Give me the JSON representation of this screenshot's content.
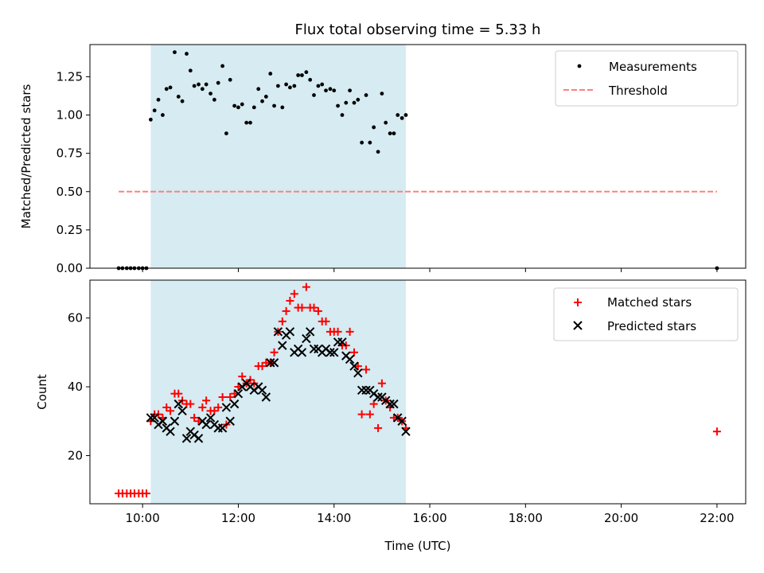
{
  "chart_data": [
    {
      "type": "scatter",
      "title": "Flux total observing time = 5.33 h",
      "xlabel": "",
      "ylabel": "Matched/Predicted stars",
      "xlim": [
        8.9,
        22.6
      ],
      "ylim": [
        0,
        1.46
      ],
      "yticks": [
        0.0,
        0.25,
        0.5,
        0.75,
        1.0,
        1.25
      ],
      "yticklabels": [
        "0.00",
        "0.25",
        "0.50",
        "0.75",
        "1.00",
        "1.25"
      ],
      "shaded_region": {
        "x0": 10.17,
        "x1": 15.5,
        "color": "#add8e6"
      },
      "legend_position": "upper right",
      "series": [
        {
          "name": "Measurements",
          "marker": "dot",
          "color": "#000000",
          "x": [
            9.5,
            9.58,
            9.67,
            9.75,
            9.83,
            9.92,
            10.0,
            10.08,
            10.17,
            10.25,
            10.33,
            10.42,
            10.5,
            10.58,
            10.67,
            10.75,
            10.83,
            10.92,
            11.0,
            11.08,
            11.17,
            11.25,
            11.33,
            11.42,
            11.5,
            11.58,
            11.67,
            11.75,
            11.83,
            11.92,
            12.0,
            12.08,
            12.17,
            12.25,
            12.33,
            12.42,
            12.5,
            12.58,
            12.67,
            12.75,
            12.83,
            12.92,
            13.0,
            13.08,
            13.17,
            13.25,
            13.33,
            13.42,
            13.5,
            13.58,
            13.67,
            13.75,
            13.83,
            13.92,
            14.0,
            14.08,
            14.17,
            14.25,
            14.33,
            14.42,
            14.5,
            14.58,
            14.67,
            14.75,
            14.83,
            14.92,
            15.0,
            15.08,
            15.17,
            15.25,
            15.33,
            15.42,
            15.5,
            22.0
          ],
          "y": [
            0,
            0,
            0,
            0,
            0,
            0,
            0,
            0,
            0.97,
            1.03,
            1.1,
            1.0,
            1.17,
            1.18,
            1.41,
            1.12,
            1.09,
            1.4,
            1.29,
            1.19,
            1.2,
            1.17,
            1.2,
            1.14,
            1.1,
            1.21,
            1.32,
            0.88,
            1.23,
            1.06,
            1.05,
            1.07,
            0.95,
            0.95,
            1.05,
            1.17,
            1.09,
            1.12,
            1.27,
            1.06,
            1.19,
            1.05,
            1.2,
            1.18,
            1.19,
            1.26,
            1.26,
            1.28,
            1.23,
            1.13,
            1.19,
            1.2,
            1.16,
            1.17,
            1.16,
            1.06,
            1.0,
            1.08,
            1.16,
            1.08,
            1.1,
            0.82,
            1.13,
            0.82,
            0.92,
            0.76,
            1.14,
            0.95,
            0.88,
            0.88,
            1.0,
            0.98,
            1.0,
            0
          ]
        },
        {
          "name": "Threshold",
          "marker": "dashed-line",
          "color": "#ff7f7f",
          "x": [
            9.5,
            22.0
          ],
          "y": [
            0.5,
            0.5
          ]
        }
      ]
    },
    {
      "type": "scatter",
      "title": "",
      "xlabel": "Time (UTC)",
      "ylabel": "Count",
      "xlim": [
        8.9,
        22.6
      ],
      "ylim": [
        6,
        71
      ],
      "yticks": [
        20,
        40,
        60
      ],
      "yticklabels": [
        "20",
        "40",
        "60"
      ],
      "xticks": [
        10,
        12,
        14,
        16,
        18,
        20,
        22
      ],
      "xticklabels": [
        "10:00",
        "12:00",
        "14:00",
        "16:00",
        "18:00",
        "20:00",
        "22:00"
      ],
      "shaded_region": {
        "x0": 10.17,
        "x1": 15.5,
        "color": "#add8e6"
      },
      "legend_position": "upper right",
      "series": [
        {
          "name": "Matched stars",
          "marker": "plus",
          "color": "#ff0000",
          "x": [
            9.5,
            9.58,
            9.67,
            9.75,
            9.83,
            9.92,
            10.0,
            10.08,
            10.17,
            10.25,
            10.33,
            10.42,
            10.5,
            10.58,
            10.67,
            10.75,
            10.83,
            10.92,
            11.0,
            11.08,
            11.17,
            11.25,
            11.33,
            11.42,
            11.5,
            11.58,
            11.67,
            11.75,
            11.83,
            11.92,
            12.0,
            12.08,
            12.17,
            12.25,
            12.33,
            12.42,
            12.5,
            12.58,
            12.67,
            12.75,
            12.83,
            12.92,
            13.0,
            13.08,
            13.17,
            13.25,
            13.33,
            13.42,
            13.5,
            13.58,
            13.67,
            13.75,
            13.83,
            13.92,
            14.0,
            14.08,
            14.17,
            14.25,
            14.33,
            14.42,
            14.5,
            14.58,
            14.67,
            14.75,
            14.83,
            14.92,
            15.0,
            15.08,
            15.17,
            15.25,
            15.33,
            15.42,
            15.5,
            22.0
          ],
          "y": [
            9,
            9,
            9,
            9,
            9,
            9,
            9,
            9,
            30,
            32,
            32,
            31,
            34,
            33,
            38,
            38,
            36,
            35,
            35,
            31,
            30,
            34,
            36,
            33,
            33,
            34,
            37,
            29,
            37,
            38,
            40,
            43,
            41,
            42,
            41,
            46,
            46,
            47,
            47,
            50,
            56,
            59,
            62,
            65,
            67,
            63,
            63,
            69,
            63,
            63,
            62,
            59,
            59,
            56,
            56,
            56,
            52,
            52,
            56,
            50,
            46,
            32,
            45,
            32,
            35,
            28,
            41,
            36,
            34,
            31,
            31,
            30,
            28,
            27
          ]
        },
        {
          "name": "Predicted stars",
          "marker": "cross",
          "color": "#000000",
          "x": [
            10.17,
            10.25,
            10.33,
            10.42,
            10.5,
            10.58,
            10.67,
            10.75,
            10.83,
            10.92,
            11.0,
            11.08,
            11.17,
            11.25,
            11.33,
            11.42,
            11.5,
            11.58,
            11.67,
            11.75,
            11.83,
            11.92,
            12.0,
            12.08,
            12.17,
            12.25,
            12.33,
            12.42,
            12.5,
            12.58,
            12.67,
            12.75,
            12.83,
            12.92,
            13.0,
            13.08,
            13.17,
            13.25,
            13.33,
            13.42,
            13.5,
            13.58,
            13.67,
            13.75,
            13.83,
            13.92,
            14.0,
            14.08,
            14.17,
            14.25,
            14.33,
            14.42,
            14.5,
            14.58,
            14.67,
            14.75,
            14.83,
            14.92,
            15.0,
            15.08,
            15.17,
            15.25,
            15.33,
            15.42,
            15.5
          ],
          "y": [
            31,
            31,
            29,
            30,
            28,
            27,
            30,
            35,
            33,
            25,
            27,
            26,
            25,
            30,
            29,
            31,
            29,
            28,
            28,
            34,
            30,
            35,
            38,
            40,
            41,
            40,
            39,
            40,
            39,
            37,
            47,
            47,
            56,
            52,
            55,
            56,
            50,
            51,
            50,
            54,
            56,
            51,
            51,
            50,
            51,
            50,
            50,
            53,
            53,
            49,
            48,
            46,
            44,
            39,
            39,
            39,
            38,
            37,
            37,
            36,
            35,
            35,
            31,
            30,
            27
          ]
        }
      ]
    }
  ]
}
